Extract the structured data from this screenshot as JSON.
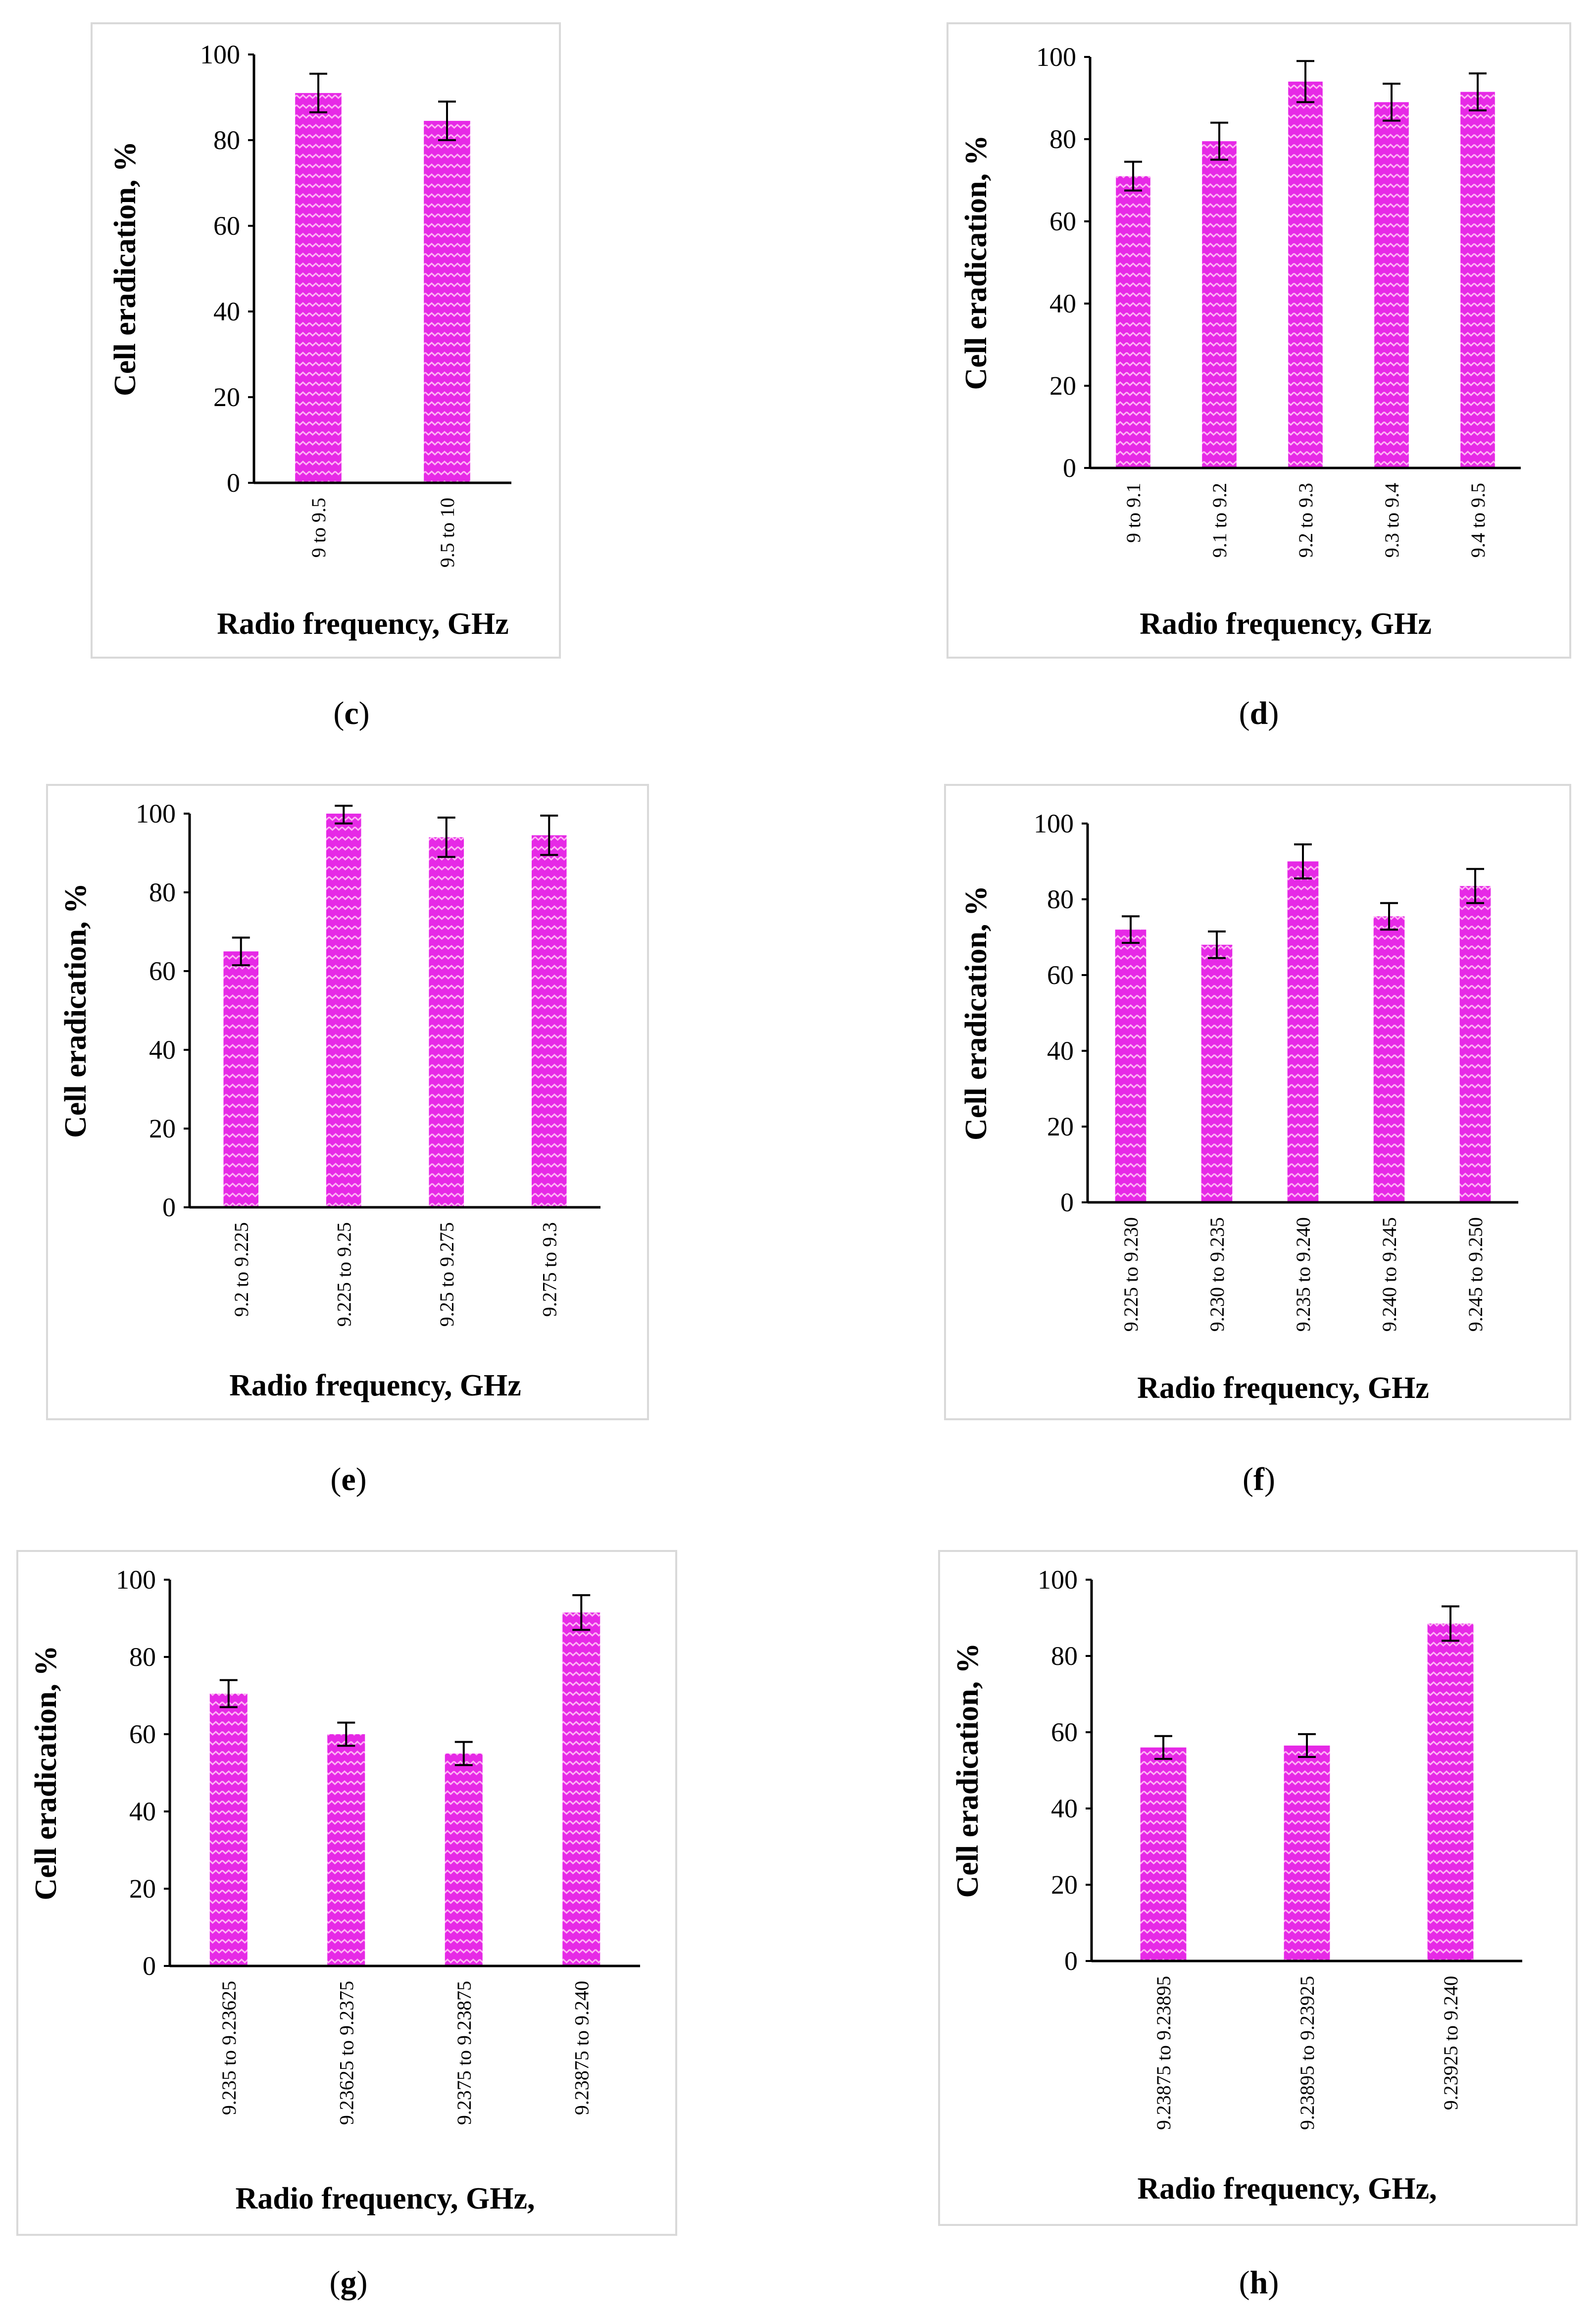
{
  "colors": {
    "bar": "#e629e6",
    "bar_pattern": "#ffb3f5",
    "frame": "#d9d9d9",
    "axis": "#000000",
    "error": "#000000"
  },
  "chart_data": [
    {
      "id": "c",
      "type": "bar",
      "caption_letter": "c",
      "title": "",
      "xlabel": "Radio frequency, GHz",
      "ylabel": "Cell eradication, %",
      "ylim": [
        0,
        100
      ],
      "yticks": [
        0,
        20,
        40,
        60,
        80,
        100
      ],
      "categories": [
        "9 to 9.5",
        "9.5 to 10"
      ],
      "values": [
        91,
        84.5
      ],
      "errors": [
        4.5,
        4.5
      ]
    },
    {
      "id": "d",
      "type": "bar",
      "caption_letter": "d",
      "title": "",
      "xlabel": "Radio frequency, GHz",
      "ylabel": "Cell eradication, %",
      "ylim": [
        0,
        100
      ],
      "yticks": [
        0,
        20,
        40,
        60,
        80,
        100
      ],
      "categories": [
        "9 to 9.1",
        "9.1 to 9.2",
        "9.2 to 9.3",
        "9.3 to 9.4",
        "9.4 to 9.5"
      ],
      "values": [
        71,
        79.5,
        94,
        89,
        91.5
      ],
      "errors": [
        3.5,
        4.5,
        5,
        4.5,
        4.5
      ]
    },
    {
      "id": "e",
      "type": "bar",
      "caption_letter": "e",
      "title": "",
      "xlabel": "Radio frequency, GHz",
      "ylabel": "Cell eradication, %",
      "ylim": [
        0,
        100
      ],
      "yticks": [
        0,
        20,
        40,
        60,
        80,
        100
      ],
      "categories": [
        "9.2 to 9.225",
        "9.225 to 9.25",
        "9.25 to 9.275",
        "9.275 to 9.3"
      ],
      "values": [
        65,
        100,
        94,
        94.5
      ],
      "errors": [
        3.5,
        2.5,
        5,
        5
      ]
    },
    {
      "id": "f",
      "type": "bar",
      "caption_letter": "f",
      "title": "",
      "xlabel": "Radio frequency, GHz",
      "ylabel": "Cell eradication, %",
      "ylim": [
        0,
        100
      ],
      "yticks": [
        0,
        20,
        40,
        60,
        80,
        100
      ],
      "categories": [
        "9.225 to 9.230",
        "9.230 to 9.235",
        "9.235 to 9.240",
        "9.240 to 9.245",
        "9.245 to 9.250"
      ],
      "values": [
        72,
        68,
        90,
        75.5,
        83.5
      ],
      "errors": [
        3.5,
        3.5,
        4.5,
        3.5,
        4.5
      ]
    },
    {
      "id": "g",
      "type": "bar",
      "caption_letter": "g",
      "title": "",
      "xlabel": "Radio frequency, GHz,",
      "ylabel": "Cell eradication, %",
      "ylim": [
        0,
        100
      ],
      "yticks": [
        0,
        20,
        40,
        60,
        80,
        100
      ],
      "categories": [
        "9.235 to 9.23625",
        "9.23625 to 9.2375",
        "9.2375 to 9.23875",
        "9.23875 to 9.240"
      ],
      "values": [
        70.5,
        60,
        55,
        91.5
      ],
      "errors": [
        3.5,
        3,
        3,
        4.5
      ]
    },
    {
      "id": "h",
      "type": "bar",
      "caption_letter": "h",
      "title": "",
      "xlabel": "Radio frequency, GHz,",
      "ylabel": "Cell eradication, %",
      "ylim": [
        0,
        100
      ],
      "yticks": [
        0,
        20,
        40,
        60,
        80,
        100
      ],
      "categories": [
        "9.23875 to 9.23895",
        "9.23895 to 9.23925",
        "9.23925 to 9.240"
      ],
      "values": [
        56,
        56.5,
        88.5
      ],
      "errors": [
        3,
        3,
        4.5
      ]
    }
  ]
}
